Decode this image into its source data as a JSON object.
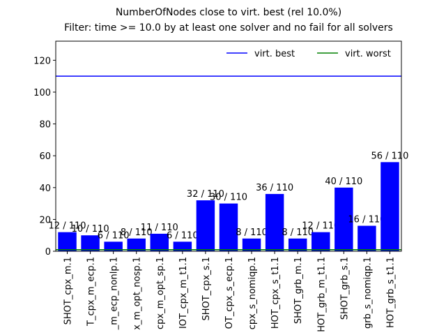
{
  "chart_data": {
    "type": "bar",
    "title": "NumberOfNodes close to virt. best (rel 10.0%)",
    "subtitle": "Filter: time >= 10.0 by at least one solver and no fail for all solvers",
    "categories": [
      "SHOT_cpx_m.1",
      "T_cpx_m_ecp.1",
      "_m_ecp_nonlp.1",
      "x_m_opt_nosp.1",
      "cpx_m_opt_sp.1",
      "IOT_cpx_m_t1.1",
      "SHOT_cpx_s.1",
      "OT_cpx_s_ecp.1",
      "cpx_s_nomiqp.1",
      "HOT_cpx_s_t1.1",
      "SHOT_grb_m.1",
      "HOT_grb_m_t1.1",
      "SHOT_grb_s.1",
      "grb_s_nomiqp.1",
      "HOT_grb_s_t1.1"
    ],
    "values": [
      12,
      10,
      6,
      8,
      11,
      6,
      32,
      30,
      8,
      36,
      8,
      12,
      40,
      16,
      56
    ],
    "value_labels": [
      "12 / 110",
      "10 / 110",
      "6 / 110",
      "8 / 110",
      "11 / 110",
      "6 / 110",
      "32 / 110",
      "30 / 110",
      "8 / 110",
      "36 / 110",
      "8 / 110",
      "12 / 110",
      "40 / 110",
      "16 / 110",
      "56 / 110"
    ],
    "color": "#0000ff",
    "reference_lines": [
      {
        "name": "virt. best",
        "color": "#0000ff",
        "value": 110
      },
      {
        "name": "virt. worst",
        "color": "#008000",
        "value": 1
      }
    ],
    "ylim": [
      0,
      132
    ],
    "yticks": [
      0,
      20,
      40,
      60,
      80,
      100,
      120
    ],
    "legend": "upper right"
  }
}
